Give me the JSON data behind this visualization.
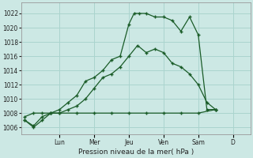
{
  "background_color": "#cce8e4",
  "grid_color": "#aad4ce",
  "line_color": "#1a5c28",
  "xlabel": "Pression niveau de la mer( hPa )",
  "ylim": [
    1005.0,
    1023.5
  ],
  "yticks": [
    1006,
    1008,
    1010,
    1012,
    1014,
    1016,
    1018,
    1020,
    1022
  ],
  "xlim": [
    -0.2,
    13.0
  ],
  "day_labels": [
    "Lun",
    "Mer",
    "Jeu",
    "Ven",
    "Sam",
    "D"
  ],
  "day_positions": [
    2.0,
    4.0,
    6.0,
    8.0,
    10.0,
    12.0
  ],
  "series1_x": [
    0,
    0.5,
    1.0,
    1.5,
    2.0,
    2.5,
    3.0,
    3.5,
    4.0,
    4.5,
    5.0,
    5.5,
    6.0,
    6.3,
    6.6,
    7.0,
    7.5,
    8.0,
    8.5,
    9.0,
    9.5,
    10.0,
    10.5,
    11.0
  ],
  "series1_y": [
    1007.0,
    1006.0,
    1007.0,
    1008.0,
    1008.5,
    1009.5,
    1010.5,
    1012.5,
    1013.0,
    1014.0,
    1015.5,
    1016.0,
    1020.5,
    1022.0,
    1022.0,
    1022.0,
    1021.5,
    1021.5,
    1021.0,
    1019.5,
    1021.5,
    1019.0,
    1008.5,
    1008.5
  ],
  "series2_x": [
    0,
    0.5,
    1.0,
    1.5,
    2.0,
    2.5,
    3.0,
    3.5,
    4.0,
    4.5,
    5.0,
    5.5,
    6.0,
    6.5,
    7.0,
    7.5,
    8.0,
    8.5,
    9.0,
    9.5,
    10.0,
    10.5,
    11.0
  ],
  "series2_y": [
    1007.0,
    1006.2,
    1007.5,
    1008.0,
    1008.0,
    1008.5,
    1009.0,
    1010.0,
    1011.5,
    1013.0,
    1013.5,
    1014.5,
    1016.0,
    1017.5,
    1016.5,
    1017.0,
    1016.5,
    1015.0,
    1014.5,
    1013.5,
    1012.0,
    1009.5,
    1008.5
  ],
  "series3_x": [
    0,
    0.5,
    1.0,
    1.5,
    2.0,
    3.0,
    4.0,
    5.0,
    6.0,
    7.0,
    8.0,
    9.0,
    10.0,
    11.0
  ],
  "series3_y": [
    1007.5,
    1008.0,
    1008.0,
    1008.0,
    1008.0,
    1008.0,
    1008.0,
    1008.0,
    1008.0,
    1008.0,
    1008.0,
    1008.0,
    1008.0,
    1008.5
  ]
}
